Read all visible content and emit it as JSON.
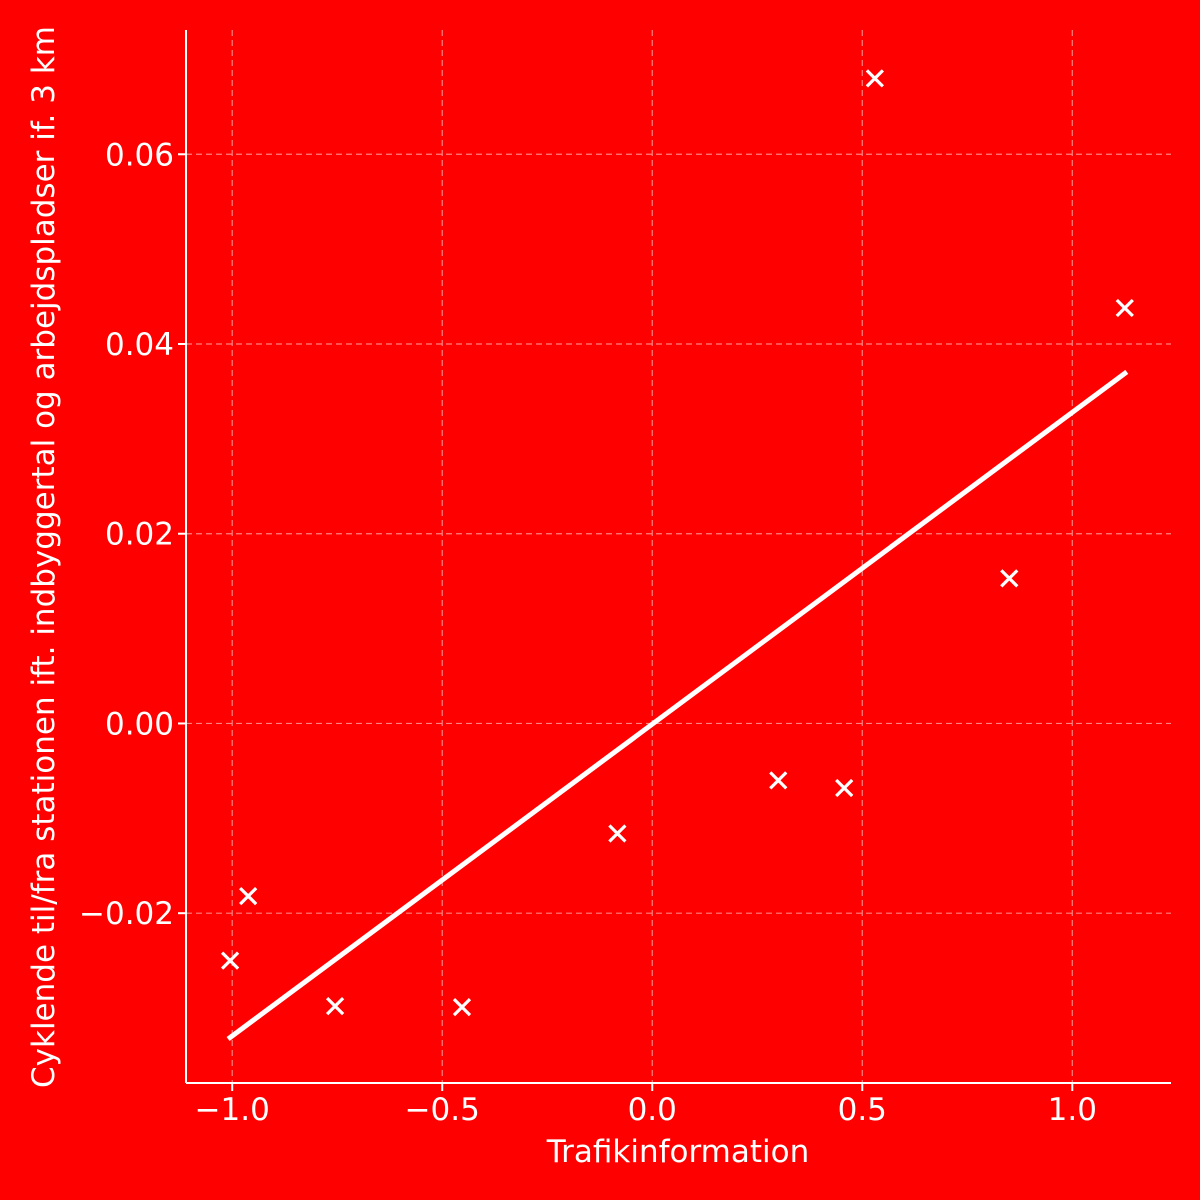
{
  "colors": {
    "background": "#ff0000",
    "foreground": "#ffffff",
    "grid": "#ff8080"
  },
  "chart_data": {
    "type": "scatter",
    "title": "",
    "xlabel": "Trafikinformation",
    "ylabel": "Cyklende til/fra stationen ift. indbyggertal og arbejdspladser if. 3 km",
    "xlim": [
      -1.11,
      1.235
    ],
    "ylim": [
      -0.0379,
      0.0731
    ],
    "x_ticks": [
      -1.0,
      -0.5,
      0.0,
      0.5,
      1.0
    ],
    "x_tick_labels": [
      "−1.0",
      "−0.5",
      "0.0",
      "0.5",
      "1.0"
    ],
    "y_ticks": [
      -0.02,
      0.0,
      0.02,
      0.04,
      0.06
    ],
    "y_tick_labels": [
      "−0.02",
      "0.00",
      "0.02",
      "0.04",
      "0.06"
    ],
    "grid": true,
    "marker": "x",
    "points": [
      {
        "x": -1.005,
        "y": -0.025
      },
      {
        "x": -0.962,
        "y": -0.0182
      },
      {
        "x": -0.755,
        "y": -0.0298
      },
      {
        "x": -0.453,
        "y": -0.0299
      },
      {
        "x": -0.083,
        "y": -0.0116
      },
      {
        "x": 0.3,
        "y": -0.006
      },
      {
        "x": 0.457,
        "y": -0.0068
      },
      {
        "x": 0.53,
        "y": 0.068
      },
      {
        "x": 0.85,
        "y": 0.0153
      },
      {
        "x": 1.125,
        "y": 0.0438
      }
    ],
    "fit_line": {
      "x": [
        -1.005,
        1.125
      ],
      "y": [
        -0.0331,
        0.0369
      ]
    }
  }
}
